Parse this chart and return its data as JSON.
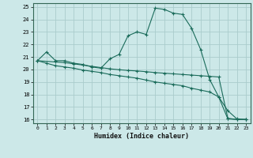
{
  "xlabel": "Humidex (Indice chaleur)",
  "bg_color": "#cce8e8",
  "grid_color": "#aacccc",
  "line_color": "#1a6b5a",
  "xlim": [
    -0.5,
    23.5
  ],
  "ylim": [
    15.7,
    25.3
  ],
  "xticks": [
    0,
    1,
    2,
    3,
    4,
    5,
    6,
    7,
    8,
    9,
    10,
    11,
    12,
    13,
    14,
    15,
    16,
    17,
    18,
    19,
    20,
    21,
    22,
    23
  ],
  "yticks": [
    16,
    17,
    18,
    19,
    20,
    21,
    22,
    23,
    24,
    25
  ],
  "line1_x": [
    0,
    1,
    2,
    3,
    4,
    5,
    6,
    7,
    8,
    9,
    10,
    11,
    12,
    13,
    14,
    15,
    16,
    17,
    18,
    19,
    20,
    21,
    22,
    23
  ],
  "line1_y": [
    20.7,
    21.4,
    20.7,
    20.7,
    20.5,
    20.4,
    20.2,
    20.1,
    20.85,
    21.2,
    22.7,
    23.0,
    22.8,
    24.9,
    24.8,
    24.5,
    24.4,
    23.3,
    21.6,
    19.2,
    17.8,
    16.7,
    16.05,
    16.0
  ],
  "line2_x": [
    0,
    1,
    2,
    3,
    4,
    5,
    6,
    7,
    8,
    9,
    10,
    11,
    12,
    13,
    14,
    15,
    16,
    17,
    18,
    19,
    20,
    21,
    22,
    23
  ],
  "line2_y": [
    20.7,
    20.5,
    20.3,
    20.2,
    20.1,
    19.95,
    19.85,
    19.75,
    19.6,
    19.5,
    19.4,
    19.3,
    19.15,
    19.0,
    18.9,
    18.8,
    18.7,
    18.5,
    18.35,
    18.2,
    17.8,
    16.05,
    16.0,
    16.0
  ],
  "line3_x": [
    0,
    2,
    3,
    4,
    5,
    6,
    7,
    8,
    9,
    10,
    11,
    12,
    13,
    14,
    15,
    16,
    17,
    18,
    19,
    20,
    21,
    22,
    23
  ],
  "line3_y": [
    20.7,
    20.6,
    20.55,
    20.45,
    20.35,
    20.25,
    20.15,
    20.05,
    19.98,
    19.92,
    19.88,
    19.82,
    19.75,
    19.7,
    19.65,
    19.6,
    19.55,
    19.5,
    19.45,
    19.4,
    16.1,
    16.0,
    16.0
  ],
  "figsize": [
    3.2,
    2.0
  ],
  "dpi": 100
}
